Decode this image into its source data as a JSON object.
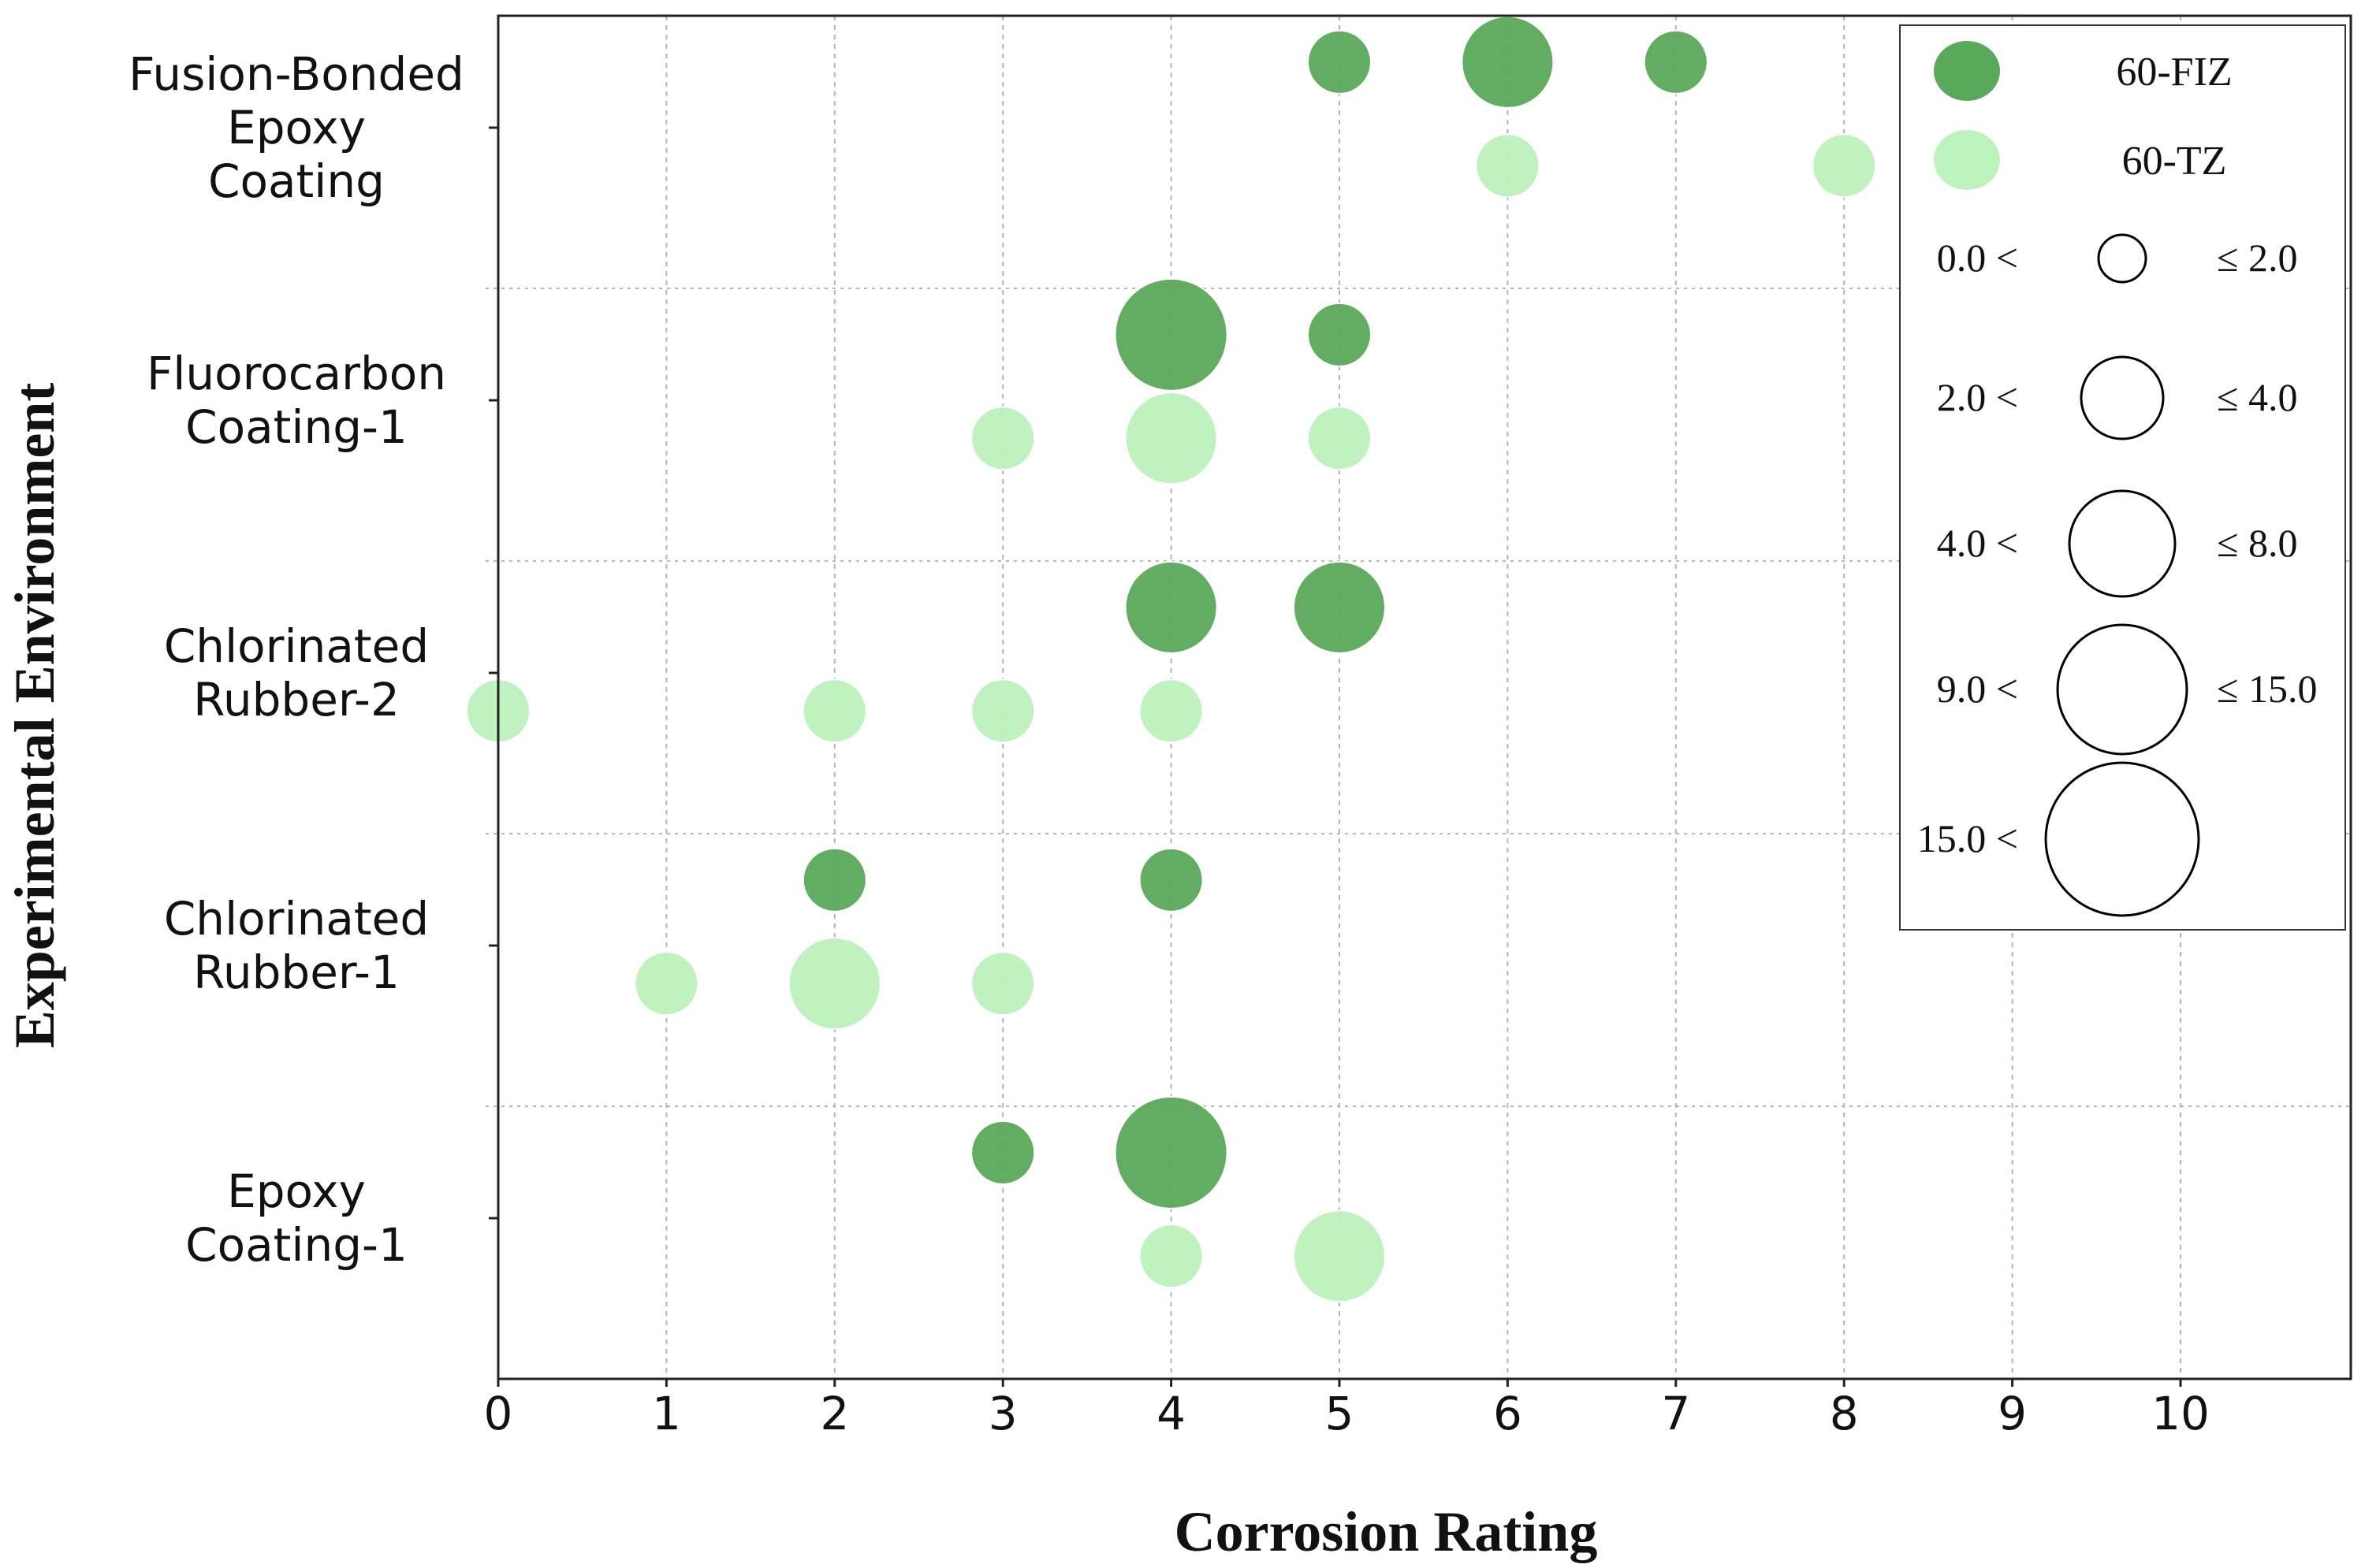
{
  "chart_data": {
    "type": "scatter",
    "subtype": "bubble",
    "xlabel": "Corrosion Rating",
    "ylabel": "Experimental Environment",
    "xlim": [
      0,
      11
    ],
    "x_ticks": [
      "0",
      "1",
      "2",
      "3",
      "4",
      "5",
      "6",
      "7",
      "8",
      "9",
      "10"
    ],
    "grid": true,
    "legend_position": "top-right",
    "categories": [
      [
        "Fusion-Bonded",
        "Epoxy",
        "Coating"
      ],
      [
        "Fluorocarbon",
        "Coating-1"
      ],
      [
        "Chlorinated",
        "Rubber-2"
      ],
      [
        "Chlorinated",
        "Rubber-1"
      ],
      [
        "Epoxy",
        "Coating-1"
      ]
    ],
    "series": [
      {
        "name": "60-FIZ",
        "color": "#5aa95a",
        "points": [
          {
            "category": 0,
            "x": 5,
            "size_class": 2
          },
          {
            "category": 0,
            "x": 6,
            "size_class": 3
          },
          {
            "category": 0,
            "x": 7,
            "size_class": 2
          },
          {
            "category": 1,
            "x": 4,
            "size_class": 4
          },
          {
            "category": 1,
            "x": 5,
            "size_class": 2
          },
          {
            "category": 2,
            "x": 4,
            "size_class": 3
          },
          {
            "category": 2,
            "x": 5,
            "size_class": 3
          },
          {
            "category": 3,
            "x": 2,
            "size_class": 2
          },
          {
            "category": 3,
            "x": 4,
            "size_class": 2
          },
          {
            "category": 4,
            "x": 3,
            "size_class": 2
          },
          {
            "category": 4,
            "x": 4,
            "size_class": 4
          }
        ]
      },
      {
        "name": "60-TZ",
        "color": "#bdf2bd",
        "points": [
          {
            "category": 0,
            "x": 6,
            "size_class": 2
          },
          {
            "category": 0,
            "x": 8,
            "size_class": 2
          },
          {
            "category": 1,
            "x": 3,
            "size_class": 2
          },
          {
            "category": 1,
            "x": 4,
            "size_class": 3
          },
          {
            "category": 1,
            "x": 5,
            "size_class": 2
          },
          {
            "category": 2,
            "x": 0,
            "size_class": 2
          },
          {
            "category": 2,
            "x": 2,
            "size_class": 2
          },
          {
            "category": 2,
            "x": 3,
            "size_class": 2
          },
          {
            "category": 2,
            "x": 4,
            "size_class": 2
          },
          {
            "category": 3,
            "x": 1,
            "size_class": 2
          },
          {
            "category": 3,
            "x": 2,
            "size_class": 3
          },
          {
            "category": 3,
            "x": 3,
            "size_class": 2
          },
          {
            "category": 4,
            "x": 4,
            "size_class": 2
          },
          {
            "category": 4,
            "x": 5,
            "size_class": 3
          }
        ]
      }
    ],
    "size_legend": [
      {
        "class": 1,
        "low": "0.0 <",
        "high": "≤ 2.0"
      },
      {
        "class": 2,
        "low": "2.0 <",
        "high": "≤ 4.0"
      },
      {
        "class": 3,
        "low": "4.0 <",
        "high": "≤ 8.0"
      },
      {
        "class": 4,
        "low": "9.0 <",
        "high": "≤ 15.0"
      },
      {
        "class": 5,
        "low": "15.0 <",
        "high": ""
      }
    ]
  }
}
